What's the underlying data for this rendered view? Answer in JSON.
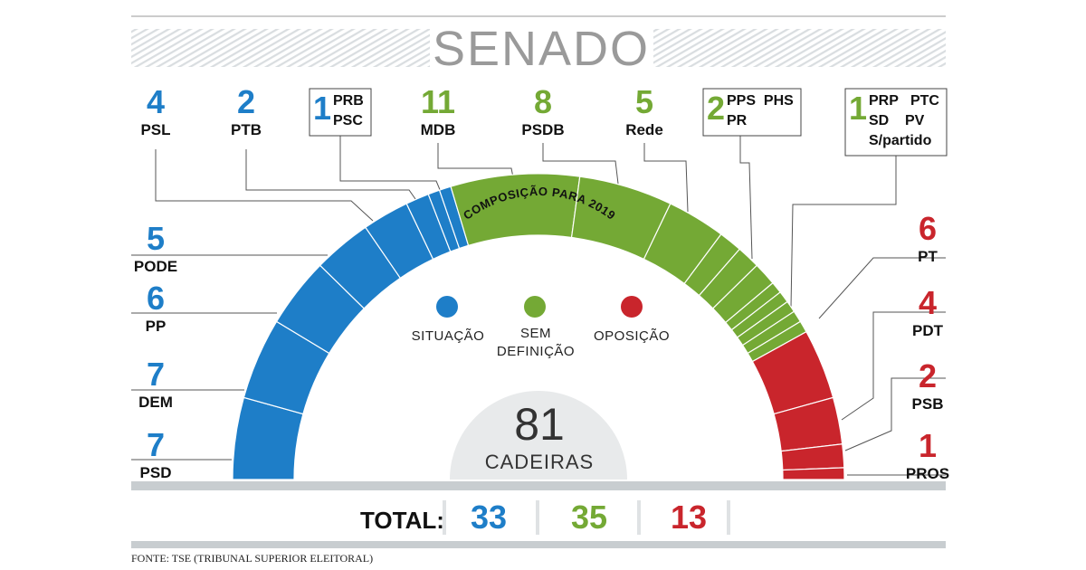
{
  "colors": {
    "situacao": "#1e7ec8",
    "sem_definicao": "#74a935",
    "oposicao": "#c9252c"
  },
  "chart_data": {
    "type": "pie",
    "title": "SENADO",
    "subtitle": "COMPOSIÇÃO PARA 2019",
    "center_value": "81",
    "center_label": "CADEIRAS",
    "total_label": "TOTAL:",
    "source": "FONTE: TSE (TRIBUNAL SUPERIOR ELEITORAL)",
    "legend": [
      {
        "key": "situacao",
        "lines": [
          "SITUAÇÃO"
        ]
      },
      {
        "key": "sem_definicao",
        "lines": [
          "SEM",
          "DEFINIÇÃO"
        ]
      },
      {
        "key": "oposicao",
        "lines": [
          "OPOSIÇÃO"
        ]
      }
    ],
    "totals": [
      {
        "group": "situacao",
        "value": "33"
      },
      {
        "group": "sem_definicao",
        "value": "35"
      },
      {
        "group": "oposicao",
        "value": "13"
      }
    ],
    "slices": [
      {
        "label": "PSD",
        "value": 7,
        "group": "situacao"
      },
      {
        "label": "DEM",
        "value": 7,
        "group": "situacao"
      },
      {
        "label": "PP",
        "value": 6,
        "group": "situacao"
      },
      {
        "label": "PODE",
        "value": 5,
        "group": "situacao"
      },
      {
        "label": "PSL",
        "value": 4,
        "group": "situacao"
      },
      {
        "label": "PTB",
        "value": 2,
        "group": "situacao"
      },
      {
        "label": "PRB",
        "value": 1,
        "group": "situacao"
      },
      {
        "label": "PSC",
        "value": 1,
        "group": "situacao"
      },
      {
        "label": "MDB",
        "value": 11,
        "group": "sem_definicao"
      },
      {
        "label": "PSDB",
        "value": 8,
        "group": "sem_definicao"
      },
      {
        "label": "Rede",
        "value": 5,
        "group": "sem_definicao"
      },
      {
        "label": "PPS",
        "value": 2,
        "group": "sem_definicao"
      },
      {
        "label": "PHS",
        "value": 2,
        "group": "sem_definicao"
      },
      {
        "label": "PR",
        "value": 2,
        "group": "sem_definicao"
      },
      {
        "label": "PRP",
        "value": 1,
        "group": "sem_definicao"
      },
      {
        "label": "PTC",
        "value": 1,
        "group": "sem_definicao"
      },
      {
        "label": "SD",
        "value": 1,
        "group": "sem_definicao"
      },
      {
        "label": "PV",
        "value": 1,
        "group": "sem_definicao"
      },
      {
        "label": "S/partido",
        "value": 1,
        "group": "sem_definicao"
      },
      {
        "label": "PT",
        "value": 6,
        "group": "oposicao"
      },
      {
        "label": "PDT",
        "value": 4,
        "group": "oposicao"
      },
      {
        "label": "PSB",
        "value": 2,
        "group": "oposicao"
      },
      {
        "label": "PROS",
        "value": 1,
        "group": "oposicao"
      }
    ],
    "labels": [
      {
        "count": "4",
        "names": [
          "PSL"
        ],
        "group": "situacao"
      },
      {
        "count": "2",
        "names": [
          "PTB"
        ],
        "group": "situacao"
      },
      {
        "count": "1",
        "names": [
          "PRB",
          "PSC"
        ],
        "group": "situacao",
        "boxed": true
      },
      {
        "count": "11",
        "names": [
          "MDB"
        ],
        "group": "sem_definicao"
      },
      {
        "count": "8",
        "names": [
          "PSDB"
        ],
        "group": "sem_definicao"
      },
      {
        "count": "5",
        "names": [
          "Rede"
        ],
        "group": "sem_definicao"
      },
      {
        "count": "2",
        "names": [
          "PPS  PHS",
          "PR"
        ],
        "group": "sem_definicao",
        "boxed": true
      },
      {
        "count": "1",
        "names": [
          "PRP   PTC",
          "SD    PV",
          "S/partido"
        ],
        "group": "sem_definicao",
        "boxed": true
      },
      {
        "count": "5",
        "names": [
          "PODE"
        ],
        "group": "situacao"
      },
      {
        "count": "6",
        "names": [
          "PP"
        ],
        "group": "situacao"
      },
      {
        "count": "7",
        "names": [
          "DEM"
        ],
        "group": "situacao"
      },
      {
        "count": "7",
        "names": [
          "PSD"
        ],
        "group": "situacao"
      },
      {
        "count": "6",
        "names": [
          "PT"
        ],
        "group": "oposicao"
      },
      {
        "count": "4",
        "names": [
          "PDT"
        ],
        "group": "oposicao"
      },
      {
        "count": "2",
        "names": [
          "PSB"
        ],
        "group": "oposicao"
      },
      {
        "count": "1",
        "names": [
          "PROS"
        ],
        "group": "oposicao"
      }
    ]
  }
}
